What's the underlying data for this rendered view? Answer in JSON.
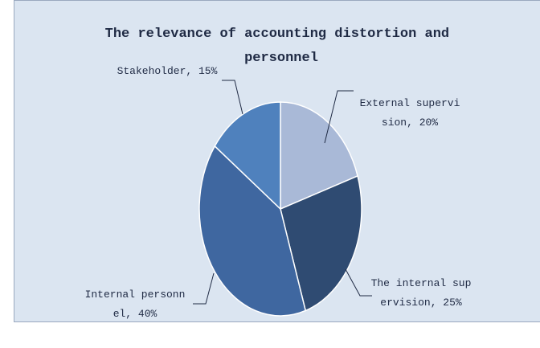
{
  "chart_data": {
    "type": "pie",
    "title": "The relevance of accounting distortion and personnel",
    "values": [
      20,
      25,
      40,
      15
    ],
    "value_labels": [
      "External supervision, 20%",
      "The internal supervision, 25%",
      "Internal personnel, 40%",
      "Stakeholder, 15%"
    ],
    "colors": [
      "#a9b9d7",
      "#2f4b72",
      "#3f67a0",
      "#4f81bd"
    ]
  }
}
